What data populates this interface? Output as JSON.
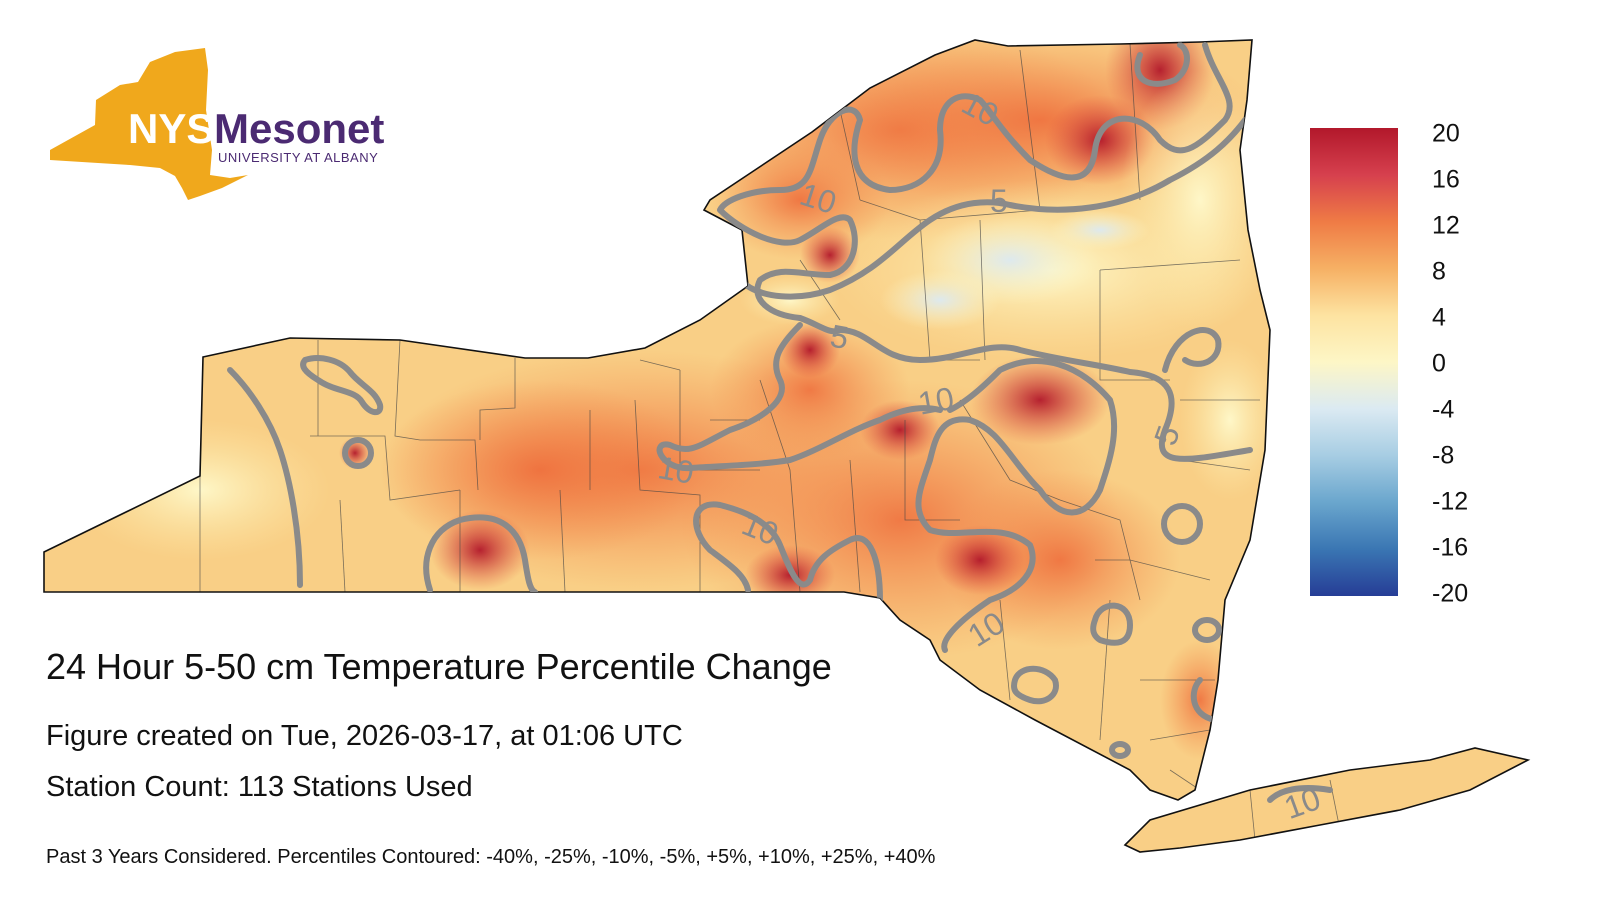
{
  "logo": {
    "primary": "NYS",
    "secondary": "Mesonet",
    "tagline": "UNIVERSITY AT ALBANY"
  },
  "title": "24 Hour 5-50 cm Temperature Percentile Change",
  "created": "Figure created on Tue, 2026-03-17, at 01:06 UTC",
  "station_count": "Station Count: 113 Stations Used",
  "footnote": "Past 3 Years Considered. Percentiles Contoured: -40%, -25%, -10%, -5%, +5%, +10%, +25%, +40%",
  "colorbar": {
    "min": -20,
    "max": 20,
    "ticks": [
      "20",
      "16",
      "12",
      "8",
      "4",
      "0",
      "-4",
      "-8",
      "-12",
      "-16",
      "-20"
    ],
    "colors": [
      "#b2182b",
      "#d6404e",
      "#ef7b45",
      "#f6b064",
      "#fde3a1",
      "#fdf6c6",
      "#dbeaf2",
      "#a7cde3",
      "#6aa6cd",
      "#3a76b3",
      "#263d96"
    ]
  },
  "contour_labels": [
    "10",
    "5",
    "10",
    "5",
    "10",
    "10",
    "10",
    "5",
    "10",
    "10"
  ],
  "colors": {
    "contour": "#8a8a8a",
    "logo_gold": "#f0a81c",
    "logo_purple": "#4b2a72"
  }
}
